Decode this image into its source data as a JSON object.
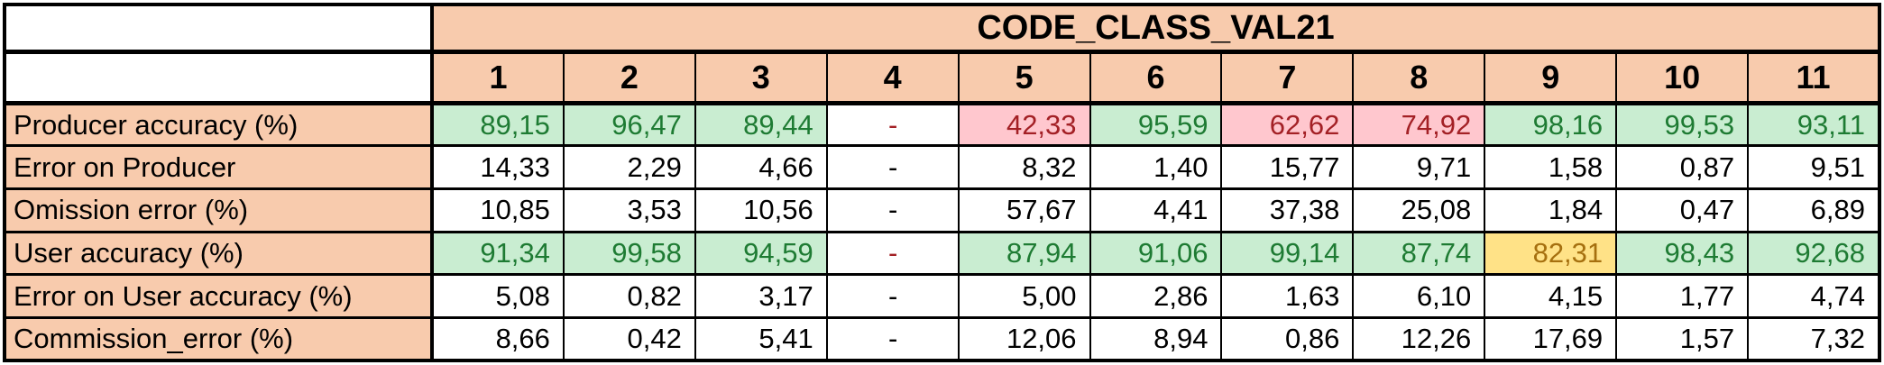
{
  "chart_data": {
    "type": "table",
    "title": "CODE_CLASS_VAL21",
    "columns": [
      "1",
      "2",
      "3",
      "4",
      "5",
      "6",
      "7",
      "8",
      "9",
      "10",
      "11"
    ],
    "rows": [
      {
        "label": "Producer accuracy (%)",
        "values": [
          "89,15",
          "96,47",
          "89,44",
          "-",
          "42,33",
          "95,59",
          "62,62",
          "74,92",
          "98,16",
          "99,53",
          "93,11"
        ]
      },
      {
        "label": "Error on Producer",
        "values": [
          "14,33",
          "2,29",
          "4,66",
          "-",
          "8,32",
          "1,40",
          "15,77",
          "9,71",
          "1,58",
          "0,87",
          "9,51"
        ]
      },
      {
        "label": "Omission error (%)",
        "values": [
          "10,85",
          "3,53",
          "10,56",
          "-",
          "57,67",
          "4,41",
          "37,38",
          "25,08",
          "1,84",
          "0,47",
          "6,89"
        ]
      },
      {
        "label": "User accuracy (%)",
        "values": [
          "91,34",
          "99,58",
          "94,59",
          "-",
          "87,94",
          "91,06",
          "99,14",
          "87,74",
          "82,31",
          "98,43",
          "92,68"
        ]
      },
      {
        "label": "Error on User accuracy (%)",
        "values": [
          "5,08",
          "0,82",
          "3,17",
          "-",
          "5,00",
          "2,86",
          "1,63",
          "6,10",
          "4,15",
          "1,77",
          "4,74"
        ]
      },
      {
        "label": "Commission_error (%)",
        "values": [
          "8,66",
          "0,42",
          "5,41",
          "-",
          "12,06",
          "8,94",
          "0,86",
          "12,26",
          "17,69",
          "1,57",
          "7,32"
        ]
      }
    ]
  },
  "cell_styles": [
    [
      "good",
      "good",
      "good",
      "dash-red",
      "bad",
      "good",
      "bad",
      "bad",
      "good",
      "good",
      "good"
    ],
    [
      "plain",
      "plain",
      "plain",
      "dash",
      "plain",
      "plain",
      "plain",
      "plain",
      "plain",
      "plain",
      "plain"
    ],
    [
      "plain",
      "plain",
      "plain",
      "dash",
      "plain",
      "plain",
      "plain",
      "plain",
      "plain",
      "plain",
      "plain"
    ],
    [
      "good",
      "good",
      "good",
      "dash-red",
      "good",
      "good",
      "good",
      "good",
      "neutral",
      "good",
      "good"
    ],
    [
      "plain",
      "plain",
      "plain",
      "dash",
      "plain",
      "plain",
      "plain",
      "plain",
      "plain",
      "plain",
      "plain"
    ],
    [
      "plain",
      "plain",
      "plain",
      "dash",
      "plain",
      "plain",
      "plain",
      "plain",
      "plain",
      "plain",
      "plain"
    ]
  ],
  "colors": {
    "header_fill": "#F8CBAD",
    "good_fill": "#C9EDD1",
    "good_text": "#1E7B33",
    "bad_fill": "#FFC7CE",
    "bad_text": "#A32025",
    "neutral_fill": "#FFE287",
    "neutral_text": "#A6700F",
    "border": "#000000"
  }
}
